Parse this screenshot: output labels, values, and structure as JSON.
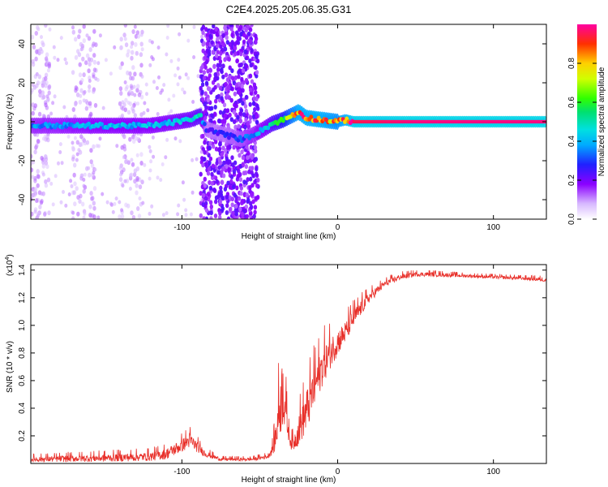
{
  "figure": {
    "title": "C2E4.2025.205.06.35.G31"
  },
  "chart_data": [
    {
      "type": "scatter",
      "subtype": "spectrogram",
      "title": "C2E4.2025.205.06.35.G31",
      "xlabel": "Height of straight line (km)",
      "ylabel": "Frequency (Hz)",
      "xlim": [
        -197,
        134
      ],
      "ylim": [
        -50,
        50
      ],
      "xticks": [
        -100,
        0,
        100
      ],
      "xtick_labels": [
        "-100",
        "0",
        "100"
      ],
      "yticks": [
        -40,
        -20,
        0,
        20,
        40
      ],
      "ytick_labels": [
        "-40",
        "-20",
        "0",
        "20",
        "40"
      ],
      "grid": false,
      "colorbar": {
        "label": "Normalized spectral amplitude",
        "range": [
          0,
          1
        ],
        "ticks": [
          0,
          0.2,
          0.4,
          0.6,
          0.8
        ],
        "tick_labels": [
          "0.0",
          "0.2",
          "0.4",
          "0.6",
          "0.8"
        ]
      },
      "noise_bands_x": [
        [
          -197,
          -185
        ],
        [
          -170,
          -155
        ],
        [
          -140,
          -125
        ],
        [
          -88,
          -51
        ]
      ],
      "centerline": {
        "x": [
          -197,
          -150,
          -120,
          -95,
          -88,
          -84,
          -62,
          -55,
          -48,
          -42,
          -35,
          -30,
          -25,
          -20,
          -10,
          0,
          5,
          10,
          50,
          134
        ],
        "frequency": [
          -2,
          -2,
          -2,
          1,
          3,
          -4,
          -9,
          -7,
          -4,
          -1,
          1,
          3,
          5,
          2,
          1,
          0,
          1,
          0,
          0,
          0
        ],
        "amplitude": [
          0.35,
          0.4,
          0.4,
          0.45,
          0.5,
          0.25,
          0.3,
          0.35,
          0.4,
          0.5,
          0.6,
          0.75,
          0.85,
          0.85,
          0.85,
          0.8,
          0.85,
          0.95,
          0.98,
          0.98
        ]
      }
    },
    {
      "type": "line",
      "xlabel": "Height of straight line (km)",
      "ylabel": "SNR (10 * v/v)",
      "y_multiplier_label": "(x10",
      "y_multiplier_exponent": "4",
      "y_multiplier_close": ")",
      "xlim": [
        -197,
        134
      ],
      "ylim": [
        0,
        14400
      ],
      "xticks": [
        -100,
        0,
        100
      ],
      "xtick_labels": [
        "-100",
        "0",
        "100"
      ],
      "yticks": [
        2000,
        4000,
        6000,
        8000,
        10000,
        12000,
        14000
      ],
      "ytick_labels": [
        "0.2",
        "0.4",
        "0.6",
        "0.8",
        "1.0",
        "1.2",
        "1.4"
      ],
      "grid": false,
      "color": "#e8302a",
      "envelope": {
        "x": [
          -197,
          -150,
          -120,
          -110,
          -100,
          -95,
          -90,
          -85,
          -75,
          -55,
          -45,
          -42,
          -40,
          -38,
          -35,
          -32,
          -30,
          -28,
          -25,
          -20,
          -15,
          -10,
          -5,
          0,
          5,
          10,
          20,
          30,
          40,
          50,
          60,
          80,
          100,
          120,
          134
        ],
        "y": [
          300,
          400,
          500,
          700,
          1300,
          1700,
          1200,
          700,
          300,
          300,
          500,
          1000,
          1800,
          3500,
          5500,
          2500,
          1500,
          1500,
          2500,
          3800,
          5500,
          7000,
          8000,
          8800,
          9500,
          10500,
          12000,
          13000,
          13500,
          13700,
          13700,
          13600,
          13500,
          13400,
          13300
        ],
        "noise": [
          250,
          350,
          400,
          500,
          600,
          700,
          500,
          300,
          150,
          150,
          200,
          500,
          1200,
          2500,
          3500,
          800,
          600,
          700,
          1500,
          2000,
          2000,
          1800,
          1500,
          1200,
          1000,
          900,
          500,
          300,
          250,
          200,
          200,
          150,
          150,
          150,
          200
        ]
      }
    }
  ]
}
